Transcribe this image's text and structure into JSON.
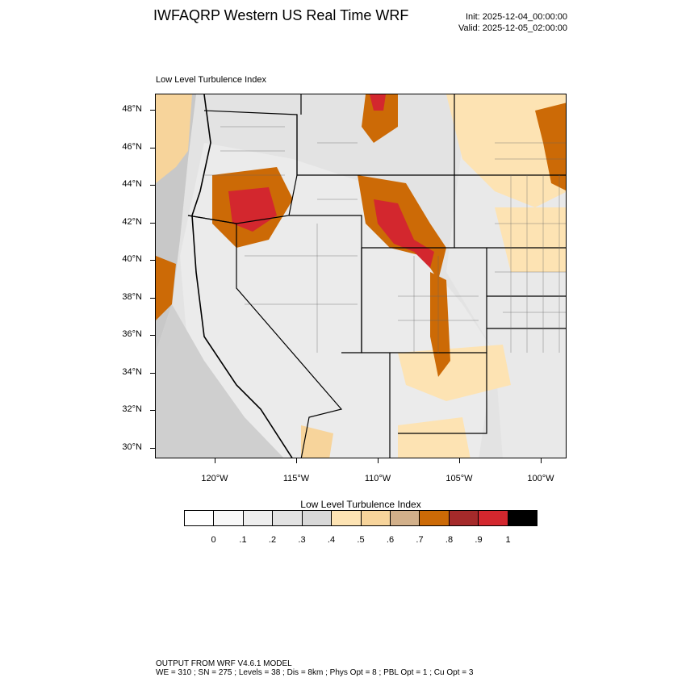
{
  "header": {
    "title": "IWFAQRP Western US Real Time WRF",
    "init": "Init: 2025-12-04_00:00:00",
    "valid": "Valid: 2025-12-05_02:00:00"
  },
  "plot": {
    "label": "Low Level Turbulence Index",
    "lat_labels": [
      "48°N",
      "46°N",
      "44°N",
      "42°N",
      "40°N",
      "38°N",
      "36°N",
      "34°N",
      "32°N",
      "30°N"
    ],
    "lon_labels": [
      "120°W",
      "115°W",
      "110°W",
      "105°W",
      "100°W"
    ]
  },
  "colorbar": {
    "title": "Low Level Turbulence Index",
    "colors": [
      "#ffffff",
      "#f8f8f8",
      "#eeeeee",
      "#e2e2e2",
      "#d8d8d8",
      "#fde3b3",
      "#f7d49b",
      "#d2b08a",
      "#cc6a06",
      "#a52a2a",
      "#d3272e",
      "#000000"
    ],
    "labels": [
      "0",
      ".1",
      ".2",
      ".3",
      ".4",
      ".5",
      ".6",
      ".7",
      ".8",
      ".9",
      "1"
    ]
  },
  "footer": {
    "line1": "OUTPUT FROM WRF V4.6.1 MODEL",
    "line2": "WE = 310 ; SN = 275 ; Levels = 38 ; Dis = 8km ; Phys Opt = 8 ; PBL Opt = 1 ; Cu Opt = 3"
  }
}
